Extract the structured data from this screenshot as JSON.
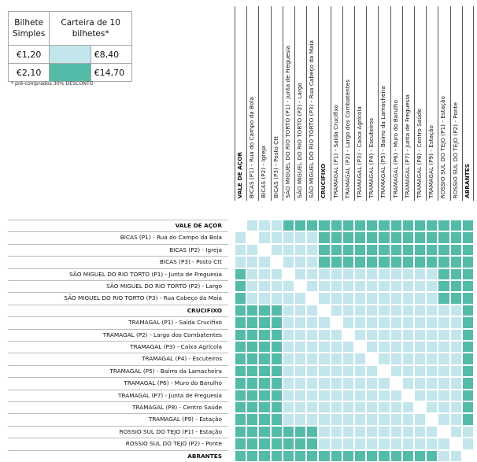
{
  "legend": {
    "header_single": "Bilhete Simples",
    "header_card": "Carteira de 10 bilhetes*",
    "rows": [
      {
        "single": "€1,20",
        "card": "€8,40",
        "zone": "light"
      },
      {
        "single": "€2,10",
        "card": "€14,70",
        "zone": "teal"
      }
    ],
    "footnote": "* pré-comprados 30% DESCONTO"
  },
  "colors": {
    "light": "#c3e6ec",
    "teal": "#55bba9"
  },
  "stops": [
    {
      "name": "VALE DE AÇOR",
      "zone": 0,
      "bold": true
    },
    {
      "name": "BICAS (P1) - Rua do Campo da Bola",
      "zone": 1,
      "bold": false
    },
    {
      "name": "BICAS (P2) - Igreja",
      "zone": 1,
      "bold": false
    },
    {
      "name": "BICAS (P3) - Posto Ctt",
      "zone": 1,
      "bold": false
    },
    {
      "name": "SÃO MIGUEL DO RIO TORTO (P1) - Junta de Freguesia",
      "zone": 2,
      "bold": false
    },
    {
      "name": "SÃO MIGUEL DO RIO TORTO (P2) - Largo",
      "zone": 2,
      "bold": false
    },
    {
      "name": "SÃO MIGUEL DO RIO TORTO (P3) - Rua Cabeço da Maia",
      "zone": 2,
      "bold": false
    },
    {
      "name": "CRUCIFIXO",
      "zone": 3,
      "bold": true
    },
    {
      "name": "TRAMAGAL (P1) - Saída Crucifixo",
      "zone": 3,
      "bold": false
    },
    {
      "name": "TRAMAGAL (P2) - Largo dos Combatentes",
      "zone": 3,
      "bold": false
    },
    {
      "name": "TRAMAGAL (P3) - Caixa Agrícola",
      "zone": 3,
      "bold": false
    },
    {
      "name": "TRAMAGAL (P4) - Escuteiros",
      "zone": 3,
      "bold": false
    },
    {
      "name": "TRAMAGAL (P5) - Bairro da Lamacheira",
      "zone": 3,
      "bold": false
    },
    {
      "name": "TRAMAGAL (P6) - Muro do Barulho",
      "zone": 3,
      "bold": false
    },
    {
      "name": "TRAMAGAL (P7) - Junta de Freguesia",
      "zone": 3,
      "bold": false
    },
    {
      "name": "TRAMAGAL (P8) - Centro Saúde",
      "zone": 3,
      "bold": false
    },
    {
      "name": "TRAMAGAL (P9) - Estação",
      "zone": 3,
      "bold": false
    },
    {
      "name": "ROSSIO SUL DO TEJO (P1) - Estação",
      "zone": 4,
      "bold": false
    },
    {
      "name": "ROSSIO SUL DO TEJO (P2) - Ponte",
      "zone": 4,
      "bold": false
    },
    {
      "name": "ABRANTES",
      "zone": 5,
      "bold": true
    }
  ],
  "row_labels": [
    "VALE DE AÇOR",
    "BICAS (P1) - Rua do Campo da Bola",
    "BICAS (P2) - Igreja",
    "BICAS (P3) - Posto Ctt",
    "SÃO MIGUEL DO RIO TORTO (P1) - Junta de Freguesia",
    "SÃO MIGUEL DO RIO TORTO (P2) - Largo",
    "SÃO MIGUEL DO RIO TORTO (P3) - Rua Cabeço da Maia",
    "CRUCIFIXO",
    "TRAMAGAL (P1) - Saída Crucifixo",
    "TRAMAGAL (P2) - Largo dos Combatentes",
    "TRAMAGAL (P3) - Caixa Agrícola",
    "TRAMAGAL (P4) - Escuteiros",
    "TRAMAGAL (P5) - Bairro da Lamacheira",
    "TRAMAGAL (P6) - Muro do Barulho",
    "TRAMAGAL (P7) - Junta de Freguesia",
    "TRAMAGAL (P8) - Centro Saúde",
    "TRAMAGAL (P9) - Estação",
    "ROSSIO SUL DO TEJO (P1) - Estação",
    "ROSSIO SUL DO TEJO (P2) - Ponte",
    "ABRANTES"
  ]
}
